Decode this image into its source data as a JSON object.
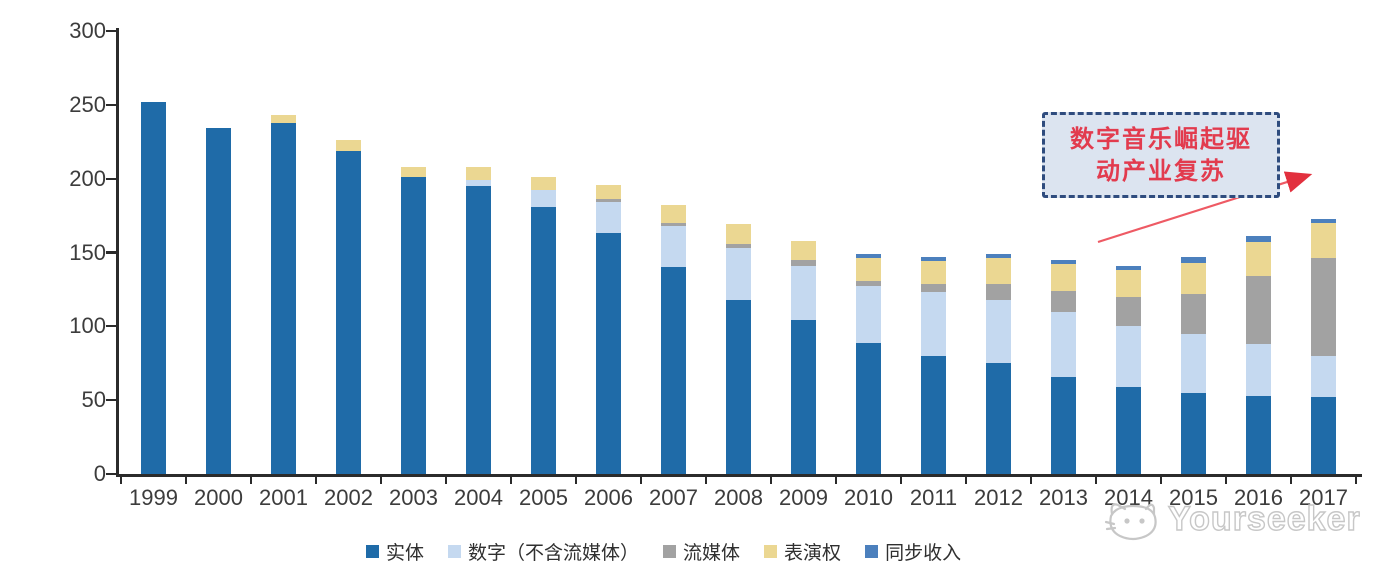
{
  "chart_data": {
    "type": "bar",
    "stacked": true,
    "categories": [
      "1999",
      "2000",
      "2001",
      "2002",
      "2003",
      "2004",
      "2005",
      "2006",
      "2007",
      "2008",
      "2009",
      "2010",
      "2011",
      "2012",
      "2013",
      "2014",
      "2015",
      "2016",
      "2017"
    ],
    "series": [
      {
        "key": "physical",
        "name": "实体",
        "color": "#1F6BA8",
        "values": [
          252,
          234,
          238,
          219,
          201,
          195,
          181,
          163,
          140,
          118,
          104,
          89,
          80,
          75,
          66,
          59,
          55,
          53,
          52
        ]
      },
      {
        "key": "digital",
        "name": "数字（不含流媒体）",
        "color": "#C5D9F0",
        "values": [
          0,
          0,
          0,
          0,
          0,
          4,
          11,
          21,
          28,
          35,
          37,
          38,
          43,
          43,
          44,
          41,
          40,
          35,
          28
        ]
      },
      {
        "key": "streaming",
        "name": "流媒体",
        "color": "#A2A2A2",
        "values": [
          0,
          0,
          0,
          0,
          0,
          0,
          0,
          2,
          2,
          3,
          4,
          4,
          6,
          11,
          14,
          20,
          27,
          46,
          66
        ]
      },
      {
        "key": "performance",
        "name": "表演权",
        "color": "#EBD792",
        "values": [
          0,
          0,
          5,
          7,
          7,
          9,
          9,
          10,
          12,
          13,
          13,
          15,
          15,
          17,
          18,
          18,
          21,
          23,
          24
        ]
      },
      {
        "key": "sync",
        "name": "同步收入",
        "color": "#4C80BD",
        "values": [
          0,
          0,
          0,
          0,
          0,
          0,
          0,
          0,
          0,
          0,
          0,
          3,
          3,
          3,
          3,
          3,
          4,
          4,
          3
        ]
      }
    ],
    "ylim": [
      0,
      300
    ],
    "yticks": [
      0,
      50,
      100,
      150,
      200,
      250,
      300
    ],
    "xlabel": "",
    "ylabel": "",
    "title": "",
    "grid": false,
    "legend_position": "bottom"
  },
  "annotation": {
    "line1": "数字音乐崛起驱",
    "line2": "动产业复苏",
    "text_color": "#E23B4E",
    "box_fill": "#DCE4F0",
    "box_border_color": "#2F4C7E",
    "arrow_color": "#EE4B59"
  },
  "watermark": {
    "text": "Yourseeker",
    "logo": "cat-logo",
    "color": "#C7C7C7"
  },
  "axis": {
    "color": "#2B2B2B",
    "label_color": "#3C3C3C"
  }
}
